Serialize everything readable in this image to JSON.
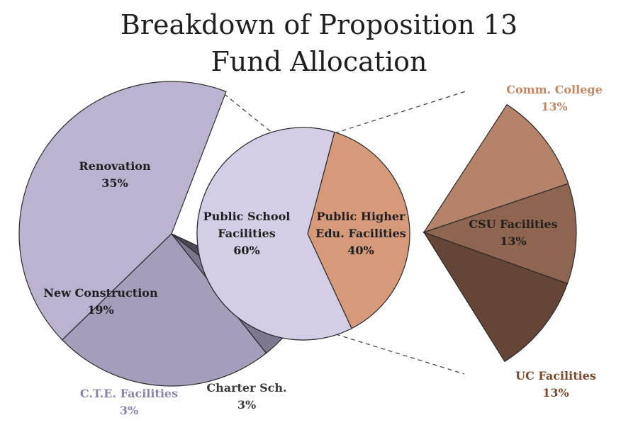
{
  "title_line1": "Breakdown of Proposition 13",
  "title_line2": "Fund Allocation",
  "chart_data": [
    {
      "type": "pie",
      "categories": [
        "Public School Facilities",
        "Public Higher Edu. Facilities"
      ],
      "values": [
        60,
        40
      ],
      "labels": [
        {
          "line1": "Public School",
          "line2": "Facilities",
          "value": "60%",
          "color": "#1f1f1f",
          "fill": "#d3cde6"
        },
        {
          "line1": "Public Higher",
          "line2": "Edu. Facilities",
          "value": "40%",
          "color": "#1f1f1f",
          "fill": "#d69a7b"
        }
      ]
    },
    {
      "type": "pie",
      "categories": [
        "Renovation",
        "New Construction",
        "C.T.E. Facilities",
        "Charter Sch."
      ],
      "values": [
        35,
        19,
        3,
        3
      ],
      "labels": [
        {
          "line1": "Renovation",
          "value": "35%",
          "color": "#1f1f1f",
          "fill": "#bbb3d0"
        },
        {
          "line1": "New Construction",
          "value": "19%",
          "color": "#1f1f1f",
          "fill": "#a59dba"
        },
        {
          "line1": "C.T.E. Facilities",
          "value": "3%",
          "color": "#8b84a6",
          "fill": "#7e7790"
        },
        {
          "line1": "Charter Sch.",
          "value": "3%",
          "color": "#3a3a3a",
          "fill": "#4d4858"
        }
      ]
    },
    {
      "type": "pie",
      "categories": [
        "Comm. College",
        "CSU Facilities",
        "UC Facilities"
      ],
      "values": [
        13,
        13,
        13
      ],
      "labels": [
        {
          "line1": "Comm. College",
          "value": "13%",
          "color": "#c48763",
          "fill": "#b5826a"
        },
        {
          "line1": "CSU Facilities",
          "value": "13%",
          "color": "#1f1f1f",
          "fill": "#8f6450"
        },
        {
          "line1": "UC Facilities",
          "value": "13%",
          "color": "#7a4a30",
          "fill": "#654535"
        }
      ]
    }
  ]
}
